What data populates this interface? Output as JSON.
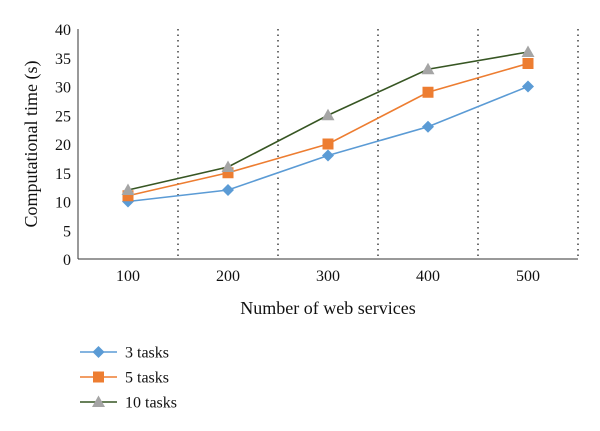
{
  "chart_data": {
    "type": "line",
    "title": "",
    "xlabel": "Number of web services",
    "ylabel": "Computational time (s)",
    "categories": [
      "100",
      "200",
      "300",
      "400",
      "500"
    ],
    "ylim": [
      0,
      40
    ],
    "yticks": [
      "0",
      "5",
      "10",
      "15",
      "20",
      "25",
      "30",
      "35",
      "40"
    ],
    "grid": "dotted vertical separators between categories",
    "legend_position": "bottom-left",
    "series": [
      {
        "name": "3 tasks",
        "values": [
          10,
          12,
          18,
          23,
          30
        ],
        "color": "#5b9bd5",
        "marker": "diamond"
      },
      {
        "name": "5 tasks",
        "values": [
          11,
          15,
          20,
          29,
          34
        ],
        "color": "#ed7d31",
        "marker": "square"
      },
      {
        "name": "10 tasks",
        "values": [
          12,
          16,
          25,
          33,
          36
        ],
        "color": "#375623",
        "marker": "triangle",
        "marker_color": "#a5a5a5"
      }
    ]
  }
}
